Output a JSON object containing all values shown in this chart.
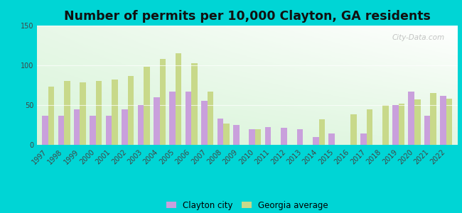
{
  "title": "Number of permits per 10,000 Clayton, GA residents",
  "years": [
    1997,
    1998,
    1999,
    2000,
    2001,
    2002,
    2003,
    2004,
    2005,
    2006,
    2007,
    2008,
    2009,
    2010,
    2011,
    2012,
    2013,
    2014,
    2015,
    2016,
    2017,
    2018,
    2019,
    2020,
    2021,
    2022
  ],
  "clayton_city": [
    37,
    37,
    45,
    37,
    37,
    45,
    50,
    60,
    67,
    67,
    55,
    33,
    25,
    20,
    22,
    21,
    20,
    10,
    14,
    null,
    14,
    null,
    50,
    67,
    37,
    62
  ],
  "georgia_avg": [
    73,
    80,
    79,
    80,
    82,
    87,
    98,
    108,
    115,
    103,
    67,
    27,
    null,
    20,
    null,
    null,
    null,
    32,
    null,
    38,
    45,
    50,
    52,
    57,
    65,
    58
  ],
  "bar_width": 0.38,
  "ylim": [
    0,
    150
  ],
  "yticks": [
    0,
    50,
    100,
    150
  ],
  "clayton_color": "#c9a0dc",
  "georgia_color": "#c8d98a",
  "plot_bg_top": "#f0f8f0",
  "plot_bg_bottom": "#d8f0d8",
  "outer_background": "#00d5d5",
  "legend_labels": [
    "Clayton city",
    "Georgia average"
  ],
  "title_fontsize": 12.5,
  "tick_fontsize": 7
}
